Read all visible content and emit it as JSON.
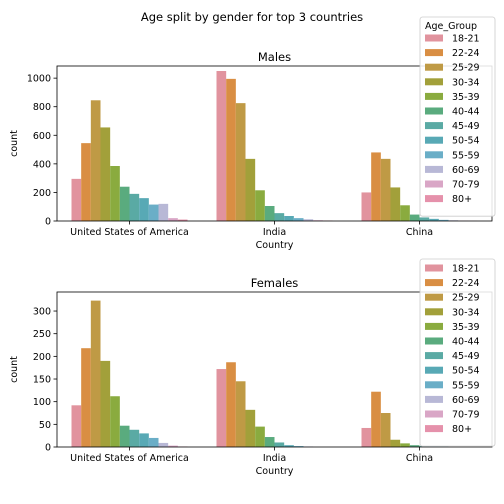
{
  "figure_title": "Age split by gender for top 3 countries",
  "legend_title": "Age_Group",
  "chart_data": [
    {
      "type": "bar",
      "title": "Males",
      "xlabel": "Country",
      "ylabel": "count",
      "categories": [
        "United States of America",
        "India",
        "China"
      ],
      "ylim": [
        0,
        1085
      ],
      "yticks": [
        0,
        200,
        400,
        600,
        800,
        1000
      ],
      "legend_position": "top-right",
      "series": [
        {
          "name": "18-21",
          "color": "#e1939e",
          "values": [
            295,
            1050,
            200
          ]
        },
        {
          "name": "22-24",
          "color": "#d98e43",
          "values": [
            545,
            995,
            480
          ]
        },
        {
          "name": "25-29",
          "color": "#bf9a45",
          "values": [
            845,
            825,
            435
          ]
        },
        {
          "name": "30-34",
          "color": "#a2a03a",
          "values": [
            655,
            435,
            235
          ]
        },
        {
          "name": "35-39",
          "color": "#8aab3f",
          "values": [
            385,
            215,
            110
          ]
        },
        {
          "name": "40-44",
          "color": "#5aab7e",
          "values": [
            240,
            105,
            45
          ]
        },
        {
          "name": "45-49",
          "color": "#5aaaa4",
          "values": [
            190,
            55,
            25
          ]
        },
        {
          "name": "50-54",
          "color": "#58a9b5",
          "values": [
            160,
            35,
            15
          ]
        },
        {
          "name": "55-59",
          "color": "#6aaec7",
          "values": [
            115,
            20,
            8
          ]
        },
        {
          "name": "60-69",
          "color": "#b8b8d6",
          "values": [
            120,
            12,
            5
          ]
        },
        {
          "name": "70-79",
          "color": "#d9a6c6",
          "values": [
            20,
            5,
            2
          ]
        },
        {
          "name": "80+",
          "color": "#e591ab",
          "values": [
            10,
            3,
            1
          ]
        }
      ]
    },
    {
      "type": "bar",
      "title": "Females",
      "xlabel": "Country",
      "ylabel": "count",
      "categories": [
        "United States of America",
        "India",
        "China"
      ],
      "ylim": [
        0,
        342
      ],
      "yticks": [
        0,
        50,
        100,
        150,
        200,
        250,
        300
      ],
      "legend_position": "top-right",
      "series": [
        {
          "name": "18-21",
          "color": "#e1939e",
          "values": [
            92,
            172,
            42
          ]
        },
        {
          "name": "22-24",
          "color": "#d98e43",
          "values": [
            218,
            187,
            122
          ]
        },
        {
          "name": "25-29",
          "color": "#bf9a45",
          "values": [
            323,
            145,
            75
          ]
        },
        {
          "name": "30-34",
          "color": "#a2a03a",
          "values": [
            190,
            82,
            16
          ]
        },
        {
          "name": "35-39",
          "color": "#8aab3f",
          "values": [
            112,
            45,
            8
          ]
        },
        {
          "name": "40-44",
          "color": "#5aab7e",
          "values": [
            47,
            22,
            4
          ]
        },
        {
          "name": "45-49",
          "color": "#5aaaa4",
          "values": [
            38,
            10,
            2
          ]
        },
        {
          "name": "50-54",
          "color": "#58a9b5",
          "values": [
            30,
            4,
            1
          ]
        },
        {
          "name": "55-59",
          "color": "#6aaec7",
          "values": [
            20,
            2,
            1
          ]
        },
        {
          "name": "60-69",
          "color": "#b8b8d6",
          "values": [
            9,
            1,
            0
          ]
        },
        {
          "name": "70-79",
          "color": "#d9a6c6",
          "values": [
            3,
            0,
            0
          ]
        },
        {
          "name": "80+",
          "color": "#e591ab",
          "values": [
            1,
            0,
            0
          ]
        }
      ]
    }
  ]
}
